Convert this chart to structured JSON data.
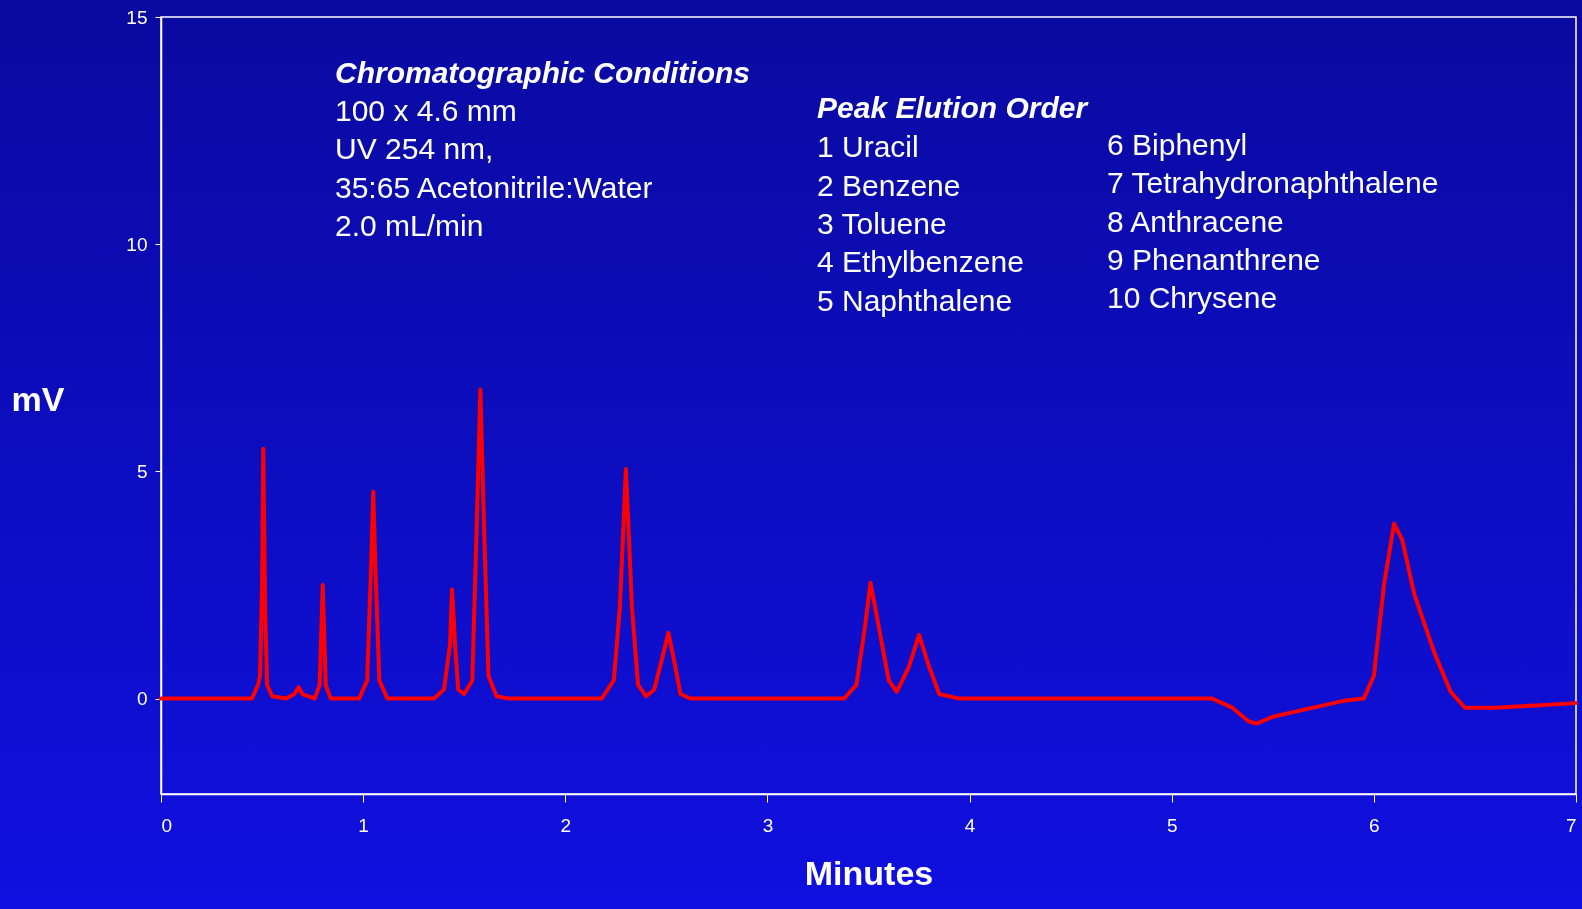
{
  "chart_data": {
    "type": "line",
    "xlabel": "Minutes",
    "ylabel": "mV",
    "xlim": [
      0,
      7
    ],
    "xticks": [
      0,
      1,
      2,
      3,
      4,
      5,
      6,
      7
    ],
    "ylim": [
      -2.1,
      15
    ],
    "yticks": [
      0,
      5,
      10,
      15
    ],
    "grid": false,
    "marker": "none",
    "line_style": "solid",
    "annotations": [
      "Chromatographic Conditions",
      "100 x 4.6 mm",
      "UV 254 nm,",
      "35:65 Acetonitrile:Water",
      "2.0 mL/min",
      "Peak Elution Order",
      "1  Uracil",
      "2  Benzene",
      "3  Toluene",
      "4  Ethylbenzene",
      "5  Naphthalene",
      "6  Biphenyl",
      "7  Tetrahydronaphthalene",
      "8  Anthracene",
      "9  Phenanthrene",
      "10 Chrysene"
    ],
    "series": [
      {
        "color": "#ff0000",
        "x": [
          0,
          0.45,
          0.48,
          0.49,
          0.5,
          0.506,
          0.515,
          0.525,
          0.55,
          0.62,
          0.66,
          0.68,
          0.7,
          0.76,
          0.785,
          0.8,
          0.815,
          0.84,
          0.98,
          1.02,
          1.04,
          1.05,
          1.06,
          1.08,
          1.12,
          1.35,
          1.4,
          1.43,
          1.44,
          1.455,
          1.47,
          1.5,
          1.54,
          1.56,
          1.58,
          1.6,
          1.62,
          1.66,
          1.72,
          2.18,
          2.24,
          2.27,
          2.3,
          2.33,
          2.36,
          2.4,
          2.44,
          2.48,
          2.51,
          2.54,
          2.57,
          2.62,
          3.38,
          3.44,
          3.48,
          3.51,
          3.55,
          3.6,
          3.64,
          3.7,
          3.75,
          3.8,
          3.85,
          3.95,
          5.2,
          5.3,
          5.38,
          5.42,
          5.5,
          5.7,
          5.85,
          5.95,
          6.0,
          6.05,
          6.1,
          6.14,
          6.2,
          6.3,
          6.38,
          6.45,
          6.6,
          6.8,
          7.0
        ],
        "values": [
          0,
          0,
          0.3,
          0.5,
          2.5,
          5.5,
          2,
          0.3,
          0.05,
          0,
          0.1,
          0.25,
          0.1,
          0,
          0.3,
          2.5,
          0.3,
          0,
          0,
          0.4,
          3,
          4.55,
          3,
          0.4,
          0,
          0,
          0.2,
          1.2,
          2.4,
          1.2,
          0.2,
          0.1,
          0.4,
          3.5,
          6.8,
          3.5,
          0.5,
          0.05,
          0,
          0,
          0.4,
          2,
          5.05,
          2,
          0.3,
          0.05,
          0.2,
          0.9,
          1.45,
          0.8,
          0.1,
          0,
          0,
          0.3,
          1.5,
          2.55,
          1.6,
          0.4,
          0.15,
          0.7,
          1.4,
          0.7,
          0.1,
          0,
          0,
          -0.2,
          -0.5,
          -0.55,
          -0.4,
          -0.2,
          -0.05,
          0,
          0.5,
          2.5,
          3.85,
          3.5,
          2.3,
          1.0,
          0.15,
          -0.2,
          -0.2,
          -0.15,
          -0.1
        ]
      }
    ]
  }
}
